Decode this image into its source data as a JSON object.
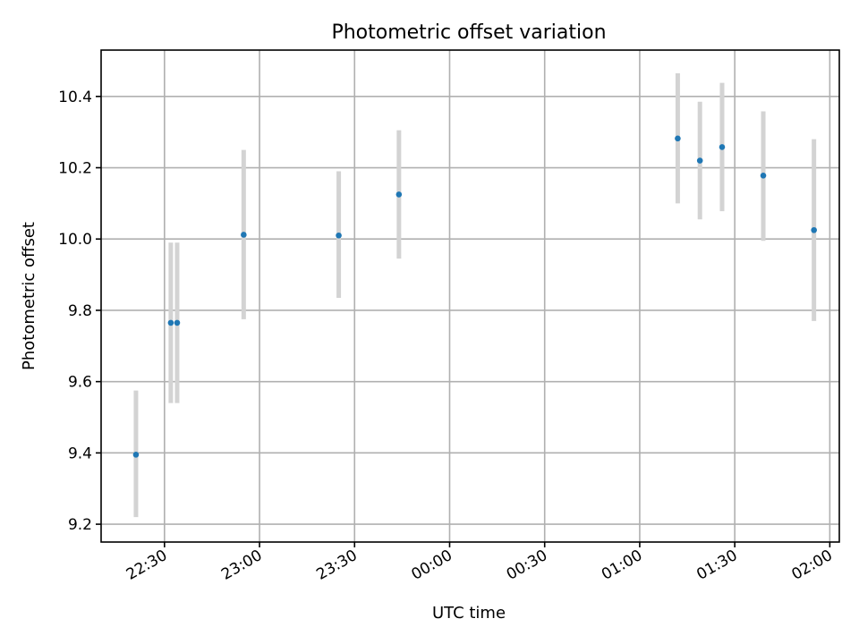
{
  "chart_data": {
    "type": "scatter",
    "title": "Photometric offset variation",
    "xlabel": "UTC time",
    "ylabel": "Photometric offset",
    "xlim": [
      "22:10",
      "02:03"
    ],
    "ylim": [
      9.15,
      10.53
    ],
    "grid": true,
    "x_ticks": [
      "22:30",
      "23:00",
      "23:30",
      "00:00",
      "00:30",
      "01:00",
      "01:30",
      "02:00"
    ],
    "y_ticks": [
      "9.2",
      "9.4",
      "9.6",
      "9.8",
      "10.0",
      "10.2",
      "10.4"
    ],
    "points": [
      {
        "time": "22:21",
        "y": 9.395,
        "err_low": 9.22,
        "err_high": 9.575
      },
      {
        "time": "22:32",
        "y": 9.765,
        "err_low": 9.54,
        "err_high": 9.99
      },
      {
        "time": "22:34",
        "y": 9.765,
        "err_low": 9.54,
        "err_high": 9.99
      },
      {
        "time": "22:55",
        "y": 10.012,
        "err_low": 9.775,
        "err_high": 10.25
      },
      {
        "time": "23:25",
        "y": 10.01,
        "err_low": 9.835,
        "err_high": 10.19
      },
      {
        "time": "23:44",
        "y": 10.125,
        "err_low": 9.945,
        "err_high": 10.305
      },
      {
        "time": "01:12",
        "y": 10.282,
        "err_low": 10.1,
        "err_high": 10.465
      },
      {
        "time": "01:19",
        "y": 10.22,
        "err_low": 10.055,
        "err_high": 10.385
      },
      {
        "time": "01:26",
        "y": 10.258,
        "err_low": 10.078,
        "err_high": 10.438
      },
      {
        "time": "01:39",
        "y": 10.178,
        "err_low": 9.995,
        "err_high": 10.358
      },
      {
        "time": "01:55",
        "y": 10.025,
        "err_low": 9.77,
        "err_high": 10.28
      }
    ],
    "colors": {
      "marker": "#1f77b4",
      "errorbar": "#d3d3d3",
      "grid": "#b0b0b0"
    }
  }
}
